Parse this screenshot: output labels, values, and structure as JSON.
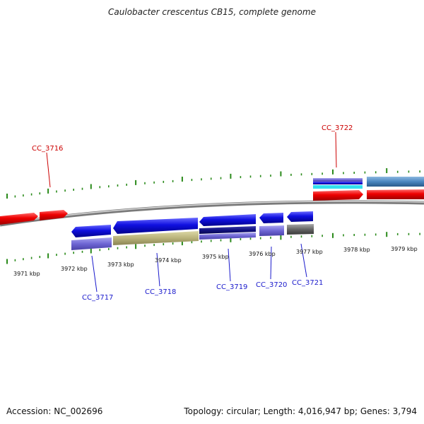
{
  "title": "Caulobacter crescentus CB15, complete genome",
  "footer": {
    "accession": "Accession: NC_002696",
    "summary": "Topology: circular; Length: 4,016,947 bp; Genes: 3,794"
  },
  "colors": {
    "forward_gene": "#ee0000",
    "reverse_gene": "#1010e0",
    "backbone": "#888888",
    "ticks": "#2a8a1a",
    "forward_label": "#cc0000",
    "reverse_label": "#1a1acc"
  },
  "scale_labels": [
    "3971 kbp",
    "3972 kbp",
    "3973 kbp",
    "3974 kbp",
    "3975 kbp",
    "3976 kbp",
    "3977 kbp",
    "3978 kbp",
    "3979 kbp"
  ],
  "gene_labels": {
    "forward": [
      "CC_3716",
      "CC_3722"
    ],
    "reverse": [
      "CC_3717",
      "CC_3718",
      "CC_3719",
      "CC_3720",
      "CC_3721"
    ]
  }
}
